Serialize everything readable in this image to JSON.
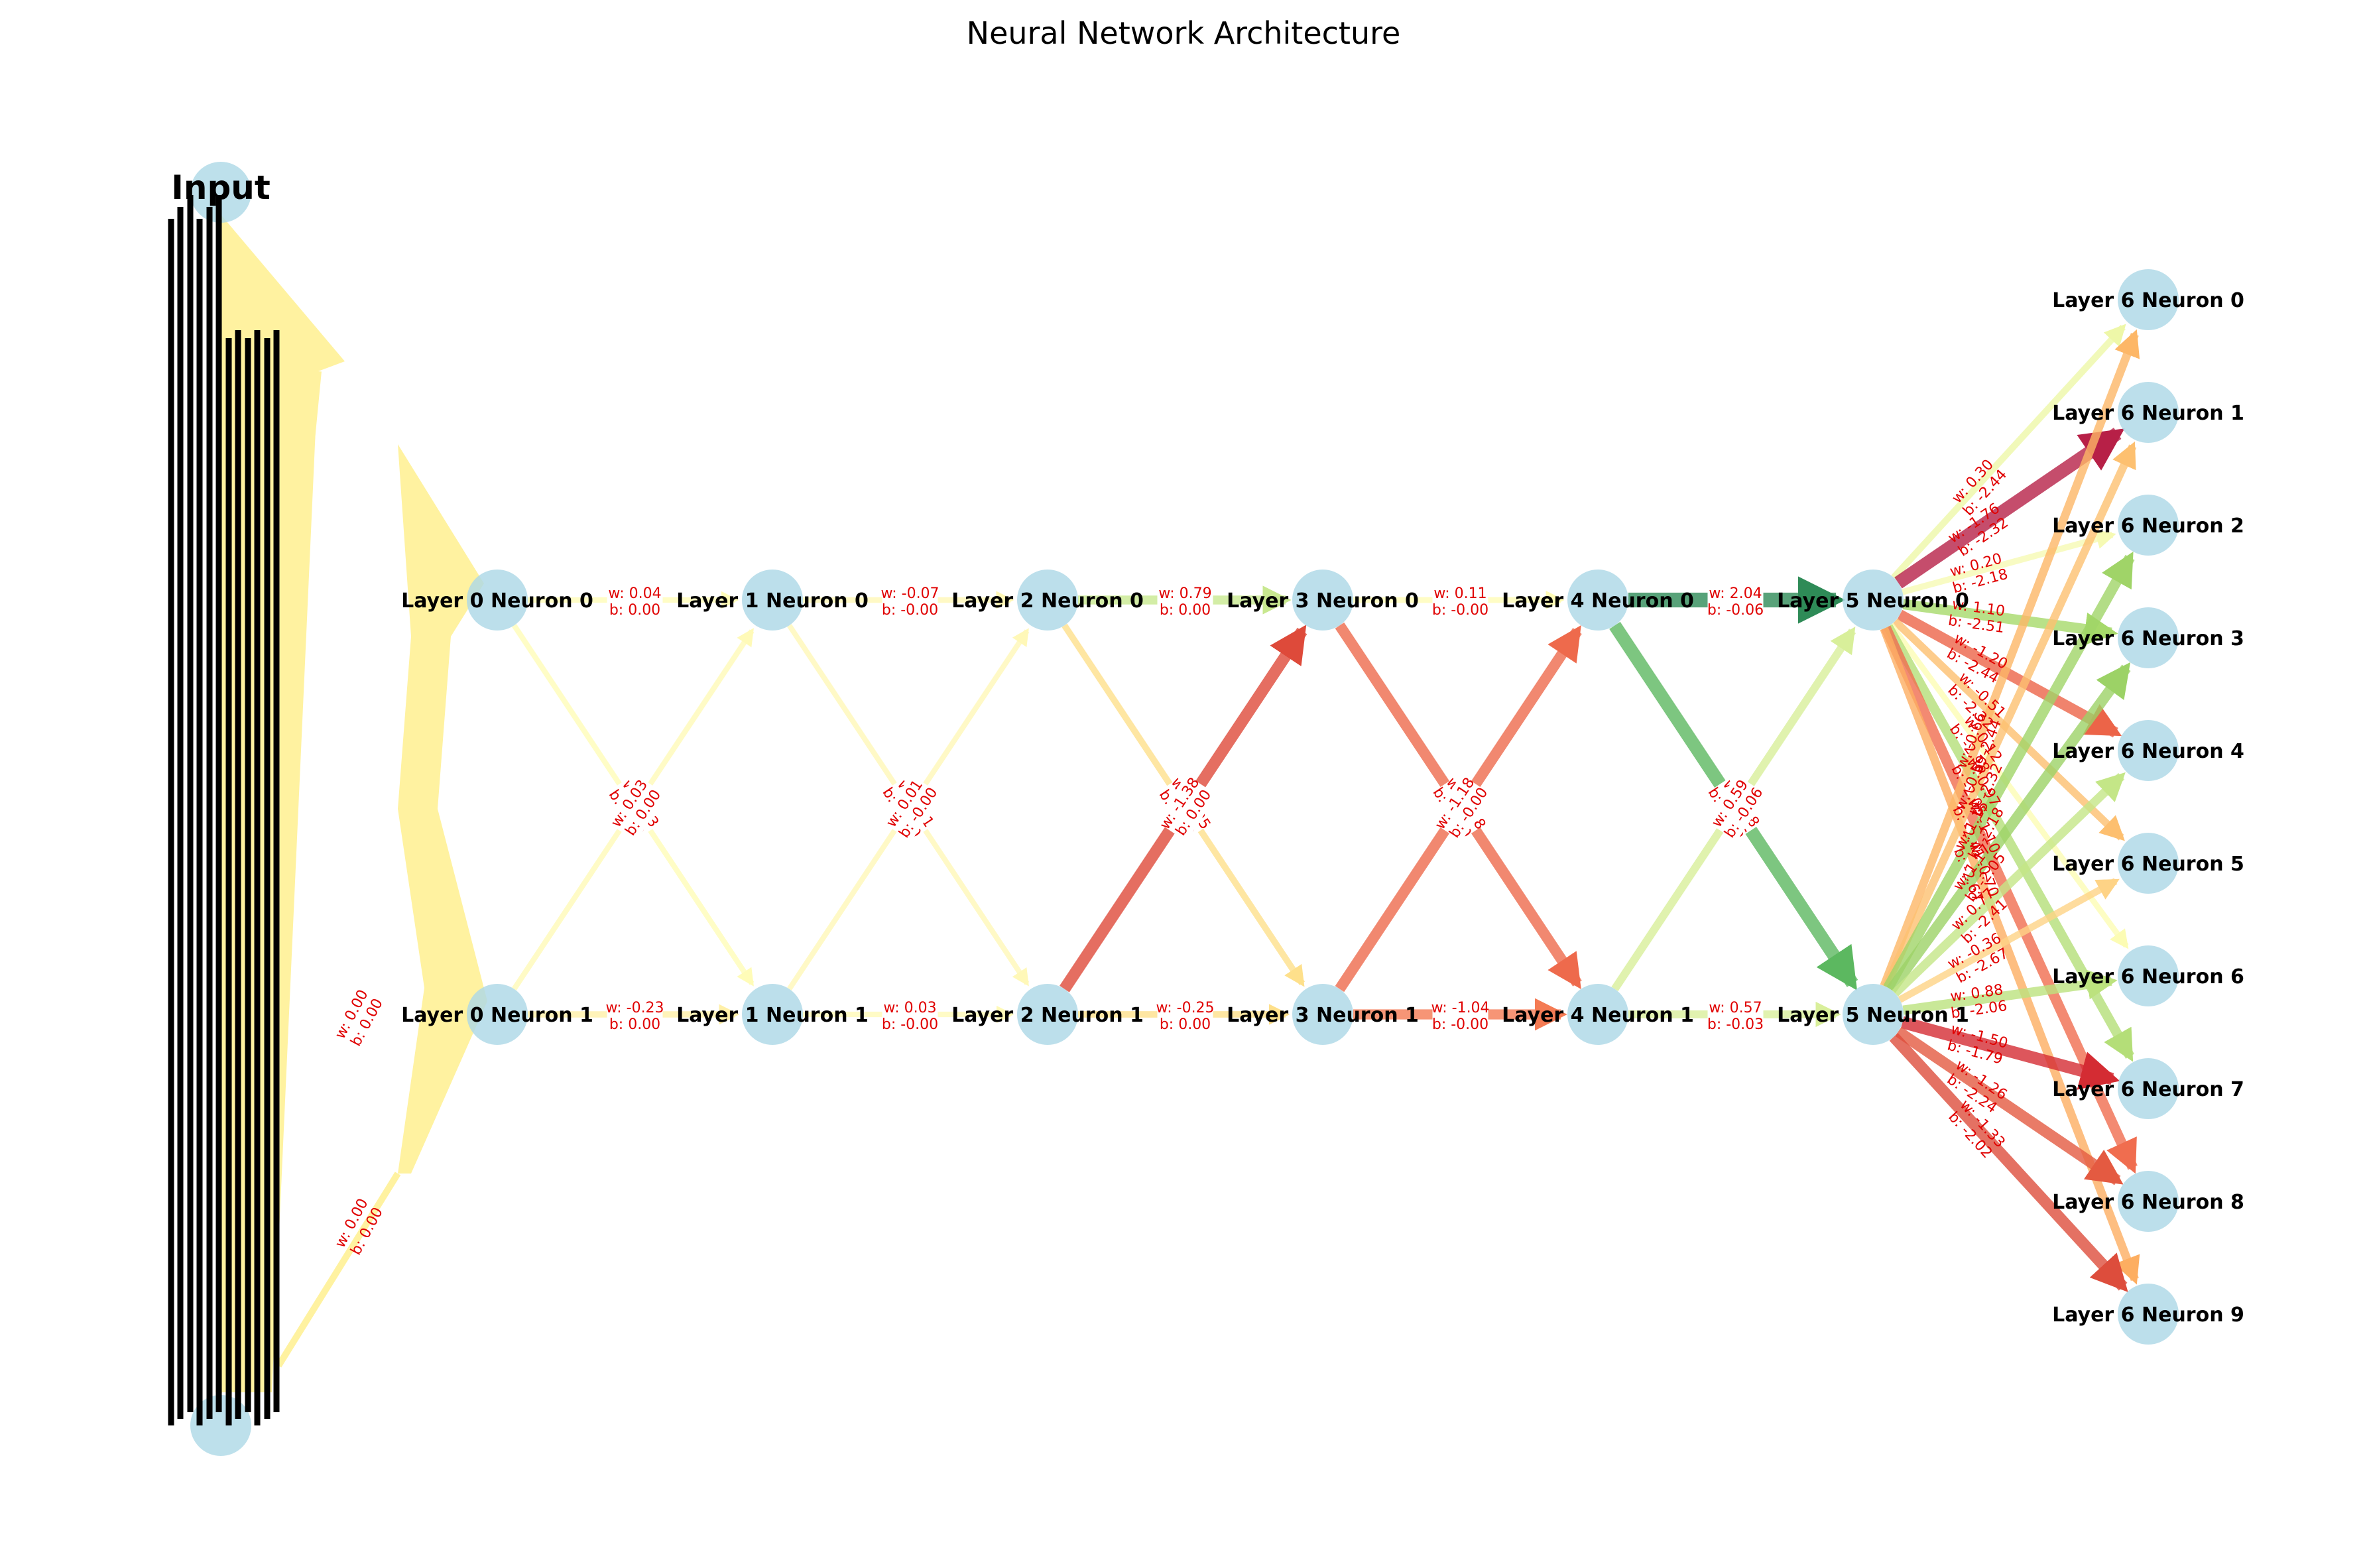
{
  "title": "Neural Network Architecture",
  "colors": {
    "node_fill": "#add8e6",
    "label_text": "#000000",
    "edge_label_text": "#e00000",
    "edge_label_box": "#ffffff",
    "input_fan": "#fff2a0"
  },
  "input_label": "Input",
  "layers": [
    {
      "name": "layer-0",
      "neurons": [
        "Layer 0 Neuron 0",
        "Layer 0 Neuron 1"
      ]
    },
    {
      "name": "layer-1",
      "neurons": [
        "Layer 1 Neuron 0",
        "Layer 1 Neuron 1"
      ]
    },
    {
      "name": "layer-2",
      "neurons": [
        "Layer 2 Neuron 0",
        "Layer 2 Neuron 1"
      ]
    },
    {
      "name": "layer-3",
      "neurons": [
        "Layer 3 Neuron 0",
        "Layer 3 Neuron 1"
      ]
    },
    {
      "name": "layer-4",
      "neurons": [
        "Layer 4 Neuron 0",
        "Layer 4 Neuron 1"
      ]
    },
    {
      "name": "layer-5",
      "neurons": [
        "Layer 5 Neuron 0",
        "Layer 5 Neuron 1"
      ]
    },
    {
      "name": "layer-6",
      "neurons": [
        "Layer 6 Neuron 0",
        "Layer 6 Neuron 1",
        "Layer 6 Neuron 2",
        "Layer 6 Neuron 3",
        "Layer 6 Neuron 4",
        "Layer 6 Neuron 5",
        "Layer 6 Neuron 6",
        "Layer 6 Neuron 7",
        "Layer 6 Neuron 8",
        "Layer 6 Neuron 9"
      ]
    }
  ],
  "input_edge_labels": [
    {
      "weight": "w: 0.00",
      "bias": "b: 0.00"
    },
    {
      "weight": "w: 0.00",
      "bias": "b: 0.00"
    }
  ],
  "edges": [
    {
      "from": [
        0,
        0
      ],
      "to": [
        1,
        0
      ],
      "weight": "w: 0.04",
      "bias": "b: 0.00",
      "color": "#fffcb8"
    },
    {
      "from": [
        0,
        0
      ],
      "to": [
        1,
        1
      ],
      "weight": "w: 0.03",
      "bias": "b: 0.00",
      "color": "#fffcb8"
    },
    {
      "from": [
        0,
        1
      ],
      "to": [
        1,
        0
      ],
      "weight": "w: 0.03",
      "bias": "b: 0.00",
      "color": "#fffab8"
    },
    {
      "from": [
        0,
        1
      ],
      "to": [
        1,
        1
      ],
      "weight": "w: -0.23",
      "bias": "b: 0.00",
      "color": "#fff0a8"
    },
    {
      "from": [
        1,
        0
      ],
      "to": [
        2,
        0
      ],
      "weight": "w: -0.07",
      "bias": "b: -0.00",
      "color": "#fff8b6"
    },
    {
      "from": [
        1,
        0
      ],
      "to": [
        2,
        1
      ],
      "weight": "w: 0.01",
      "bias": "b: -0.00",
      "color": "#fff8b8"
    },
    {
      "from": [
        1,
        1
      ],
      "to": [
        2,
        0
      ],
      "weight": "w: 0.01",
      "bias": "b: -0.00",
      "color": "#fff8b8"
    },
    {
      "from": [
        1,
        1
      ],
      "to": [
        2,
        1
      ],
      "weight": "w: 0.03",
      "bias": "b: -0.00",
      "color": "#fffab8"
    },
    {
      "from": [
        2,
        0
      ],
      "to": [
        3,
        0
      ],
      "weight": "w: 0.79",
      "bias": "b: 0.00",
      "color": "#c8e890"
    },
    {
      "from": [
        2,
        0
      ],
      "to": [
        3,
        1
      ],
      "weight": "w: -0.25",
      "bias": "b: 0.00",
      "color": "#fee08b"
    },
    {
      "from": [
        2,
        1
      ],
      "to": [
        3,
        0
      ],
      "weight": "w: -1.38",
      "bias": "b: 0.00",
      "color": "#de4a3a"
    },
    {
      "from": [
        2,
        1
      ],
      "to": [
        3,
        1
      ],
      "weight": "w: -0.25",
      "bias": "b: 0.00",
      "color": "#fee08b"
    },
    {
      "from": [
        3,
        0
      ],
      "to": [
        4,
        0
      ],
      "weight": "w: 0.11",
      "bias": "b: -0.00",
      "color": "#fffcb6"
    },
    {
      "from": [
        3,
        0
      ],
      "to": [
        4,
        1
      ],
      "weight": "w: -1.18",
      "bias": "b: -0.00",
      "color": "#ee6a4c"
    },
    {
      "from": [
        3,
        1
      ],
      "to": [
        4,
        0
      ],
      "weight": "w: -1.18",
      "bias": "b: -0.00",
      "color": "#ee6a4c"
    },
    {
      "from": [
        3,
        1
      ],
      "to": [
        4,
        1
      ],
      "weight": "w: -1.04",
      "bias": "b: -0.00",
      "color": "#f47b54"
    },
    {
      "from": [
        4,
        0
      ],
      "to": [
        5,
        0
      ],
      "weight": "w: 2.04",
      "bias": "b: -0.06",
      "color": "#2e8b57"
    },
    {
      "from": [
        4,
        0
      ],
      "to": [
        5,
        1
      ],
      "weight": "w: 1.68",
      "bias": "b: -0.06",
      "color": "#5cb860"
    },
    {
      "from": [
        4,
        1
      ],
      "to": [
        5,
        0
      ],
      "weight": "w: 0.59",
      "bias": "b: -0.06",
      "color": "#d8ef9a"
    },
    {
      "from": [
        4,
        1
      ],
      "to": [
        5,
        1
      ],
      "weight": "w: 0.57",
      "bias": "b: -0.03",
      "color": "#d9ef9b"
    },
    {
      "from": [
        5,
        0
      ],
      "to": [
        6,
        0
      ],
      "weight": "w: 0.30",
      "bias": "b: -2.44",
      "color": "#eef7a8"
    },
    {
      "from": [
        5,
        0
      ],
      "to": [
        6,
        1
      ],
      "weight": "w: -1.76",
      "bias": "b: -2.32",
      "color": "#b72047"
    },
    {
      "from": [
        5,
        0
      ],
      "to": [
        6,
        2
      ],
      "weight": "w: 0.20",
      "bias": "b: -2.18",
      "color": "#f6fab4"
    },
    {
      "from": [
        5,
        0
      ],
      "to": [
        6,
        3
      ],
      "weight": "w: 1.10",
      "bias": "b: -2.51",
      "color": "#a6d96a"
    },
    {
      "from": [
        5,
        0
      ],
      "to": [
        6,
        4
      ],
      "weight": "w: -1.20",
      "bias": "b: -2.44",
      "color": "#ec6448"
    },
    {
      "from": [
        5,
        0
      ],
      "to": [
        6,
        5
      ],
      "weight": "w: -0.51",
      "bias": "b: -2.32",
      "color": "#fdbf6f"
    },
    {
      "from": [
        5,
        0
      ],
      "to": [
        6,
        6
      ],
      "weight": "w: 0.12",
      "bias": "b: -2.18",
      "color": "#fcfcb4"
    },
    {
      "from": [
        5,
        0
      ],
      "to": [
        6,
        7
      ],
      "weight": "w: 0.97",
      "bias": "b: -2.05",
      "color": "#b4de78"
    },
    {
      "from": [
        5,
        0
      ],
      "to": [
        6,
        8
      ],
      "weight": "w: -1.10",
      "bias": "b: -2.41",
      "color": "#f06d4f"
    },
    {
      "from": [
        5,
        0
      ],
      "to": [
        6,
        9
      ],
      "weight": "w: -0.70",
      "bias": "b: -2.67",
      "color": "#fdae61"
    },
    {
      "from": [
        5,
        1
      ],
      "to": [
        6,
        0
      ],
      "weight": "w: -0.66",
      "bias": "b: -2.44",
      "color": "#fdb767"
    },
    {
      "from": [
        5,
        1
      ],
      "to": [
        6,
        1
      ],
      "weight": "w: -0.59",
      "bias": "b: -2.32",
      "color": "#fdc070"
    },
    {
      "from": [
        5,
        1
      ],
      "to": [
        6,
        2
      ],
      "weight": "w: 1.15",
      "bias": "b: -2.18",
      "color": "#a0d468"
    },
    {
      "from": [
        5,
        1
      ],
      "to": [
        6,
        3
      ],
      "weight": "w: 1.17",
      "bias": "b: -2.05",
      "color": "#9cd266"
    },
    {
      "from": [
        5,
        1
      ],
      "to": [
        6,
        4
      ],
      "weight": "w: 0.77",
      "bias": "b: -2.41",
      "color": "#c4e687"
    },
    {
      "from": [
        5,
        1
      ],
      "to": [
        6,
        5
      ],
      "weight": "w: -0.36",
      "bias": "b: -2.67",
      "color": "#fed386"
    },
    {
      "from": [
        5,
        1
      ],
      "to": [
        6,
        6
      ],
      "weight": "w: 0.88",
      "bias": "b: -2.06",
      "color": "#bce27e"
    },
    {
      "from": [
        5,
        1
      ],
      "to": [
        6,
        7
      ],
      "weight": "w: -1.50",
      "bias": "b: -1.79",
      "color": "#d42c33"
    },
    {
      "from": [
        5,
        1
      ],
      "to": [
        6,
        8
      ],
      "weight": "w: -1.26",
      "bias": "b: -2.24",
      "color": "#e45a41"
    },
    {
      "from": [
        5,
        1
      ],
      "to": [
        6,
        9
      ],
      "weight": "w: -1.33",
      "bias": "b: -2.02",
      "color": "#dd4d3c"
    }
  ]
}
